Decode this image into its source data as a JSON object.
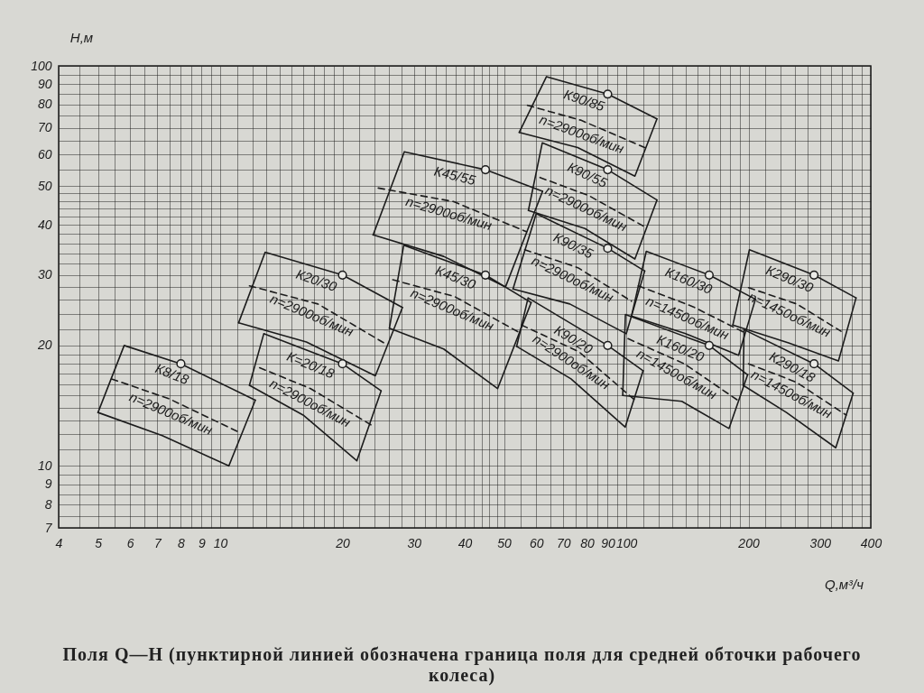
{
  "chart_data": {
    "type": "line",
    "xlabel": "Q,м³/ч",
    "ylabel": "H,м",
    "log": "xy",
    "grid": true,
    "xlim": [
      4,
      400
    ],
    "ylim": [
      7,
      100
    ],
    "xticks": [
      4,
      {
        "value": 4.5,
        "label": null
      },
      5,
      {
        "value": 5.5,
        "label": null
      },
      6,
      {
        "value": 6.5,
        "label": null
      },
      7,
      {
        "value": 7.5,
        "label": null
      },
      8,
      {
        "value": 8.5,
        "label": null
      },
      9,
      {
        "value": 9.5,
        "label": null
      },
      10,
      {
        "value": 11,
        "label": null
      },
      {
        "value": 12,
        "label": null
      },
      {
        "value": 13,
        "label": null
      },
      {
        "value": 14,
        "label": null
      },
      {
        "value": 15,
        "label": null
      },
      {
        "value": 16,
        "label": null
      },
      {
        "value": 17,
        "label": null
      },
      {
        "value": 18,
        "label": null
      },
      {
        "value": 19,
        "label": null
      },
      20,
      {
        "value": 22,
        "label": null
      },
      {
        "value": 24,
        "label": null
      },
      {
        "value": 26,
        "label": null
      },
      {
        "value": 28,
        "label": null
      },
      30,
      {
        "value": 32,
        "label": null
      },
      {
        "value": 34,
        "label": null
      },
      {
        "value": 36,
        "label": null
      },
      {
        "value": 38,
        "label": null
      },
      40,
      {
        "value": 42,
        "label": null
      },
      {
        "value": 44,
        "label": null
      },
      {
        "value": 46,
        "label": null
      },
      {
        "value": 48,
        "label": null
      },
      50,
      {
        "value": 55,
        "label": null
      },
      60,
      {
        "value": 65,
        "label": null
      },
      70,
      {
        "value": 75,
        "label": null
      },
      80,
      {
        "value": 85,
        "label": null
      },
      90,
      {
        "value": 95,
        "label": null
      },
      100,
      {
        "value": 110,
        "label": null
      },
      {
        "value": 120,
        "label": null
      },
      {
        "value": 130,
        "label": null
      },
      {
        "value": 140,
        "label": null
      },
      {
        "value": 150,
        "label": null
      },
      {
        "value": 160,
        "label": null
      },
      {
        "value": 170,
        "label": null
      },
      {
        "value": 180,
        "label": null
      },
      {
        "value": 190,
        "label": null
      },
      200,
      {
        "value": 220,
        "label": null
      },
      {
        "value": 240,
        "label": null
      },
      {
        "value": 260,
        "label": null
      },
      {
        "value": 280,
        "label": null
      },
      300,
      {
        "value": 320,
        "label": null
      },
      {
        "value": 340,
        "label": null
      },
      {
        "value": 360,
        "label": null
      },
      {
        "value": 380,
        "label": null
      },
      400
    ],
    "yticks": [
      7,
      {
        "value": 7.5,
        "label": null
      },
      8,
      {
        "value": 8.5,
        "label": null
      },
      9,
      {
        "value": 9.5,
        "label": null
      },
      10,
      {
        "value": 11,
        "label": null
      },
      {
        "value": 12,
        "label": null
      },
      {
        "value": 13,
        "label": null
      },
      {
        "value": 14,
        "label": null
      },
      {
        "value": 15,
        "label": null
      },
      {
        "value": 16,
        "label": null
      },
      {
        "value": 17,
        "label": null
      },
      {
        "value": 18,
        "label": null
      },
      {
        "value": 19,
        "label": null
      },
      20,
      {
        "value": 22,
        "label": null
      },
      {
        "value": 24,
        "label": null
      },
      {
        "value": 26,
        "label": null
      },
      {
        "value": 28,
        "label": null
      },
      30,
      {
        "value": 32,
        "label": null
      },
      {
        "value": 34,
        "label": null
      },
      {
        "value": 36,
        "label": null
      },
      {
        "value": 38,
        "label": null
      },
      40,
      {
        "value": 42,
        "label": null
      },
      {
        "value": 44,
        "label": null
      },
      {
        "value": 46,
        "label": null
      },
      {
        "value": 48,
        "label": null
      },
      50,
      {
        "value": 55,
        "label": null
      },
      60,
      {
        "value": 65,
        "label": null
      },
      70,
      {
        "value": 75,
        "label": null
      },
      80,
      {
        "value": 85,
        "label": null
      },
      90,
      {
        "value": 95,
        "label": null
      },
      100
    ],
    "series": [
      {
        "type": "line",
        "name": "К8/18",
        "color": "#1c1c1c",
        "line_style": "solid",
        "x": [
          5.0,
          5.8,
          8,
          12.2
        ],
        "values": [
          13.6,
          20.0,
          18,
          14.6
        ]
      },
      {
        "type": "line",
        "color": "#1c1c1c",
        "line_style": "solid",
        "x": [
          5.0,
          7.2,
          10.5,
          12.2
        ],
        "values": [
          13.6,
          11.9,
          10.0,
          14.6
        ]
      },
      {
        "type": "line",
        "name": "n=2900об/мин",
        "color": "#1c1c1c",
        "line_style": "dashed",
        "x": [
          5.4,
          7.5,
          11.2
        ],
        "values": [
          16.5,
          14.7,
          12.1
        ]
      },
      {
        "type": "line",
        "name": "К20/30",
        "color": "#1c1c1c",
        "line_style": "solid",
        "x": [
          11.1,
          12.9,
          20,
          28.1
        ],
        "values": [
          22.8,
          34.2,
          30,
          24.9
        ]
      },
      {
        "type": "line",
        "color": "#1c1c1c",
        "line_style": "solid",
        "x": [
          11.1,
          16.3,
          24.1,
          28.1
        ],
        "values": [
          22.8,
          20.4,
          16.8,
          24.9
        ]
      },
      {
        "type": "line",
        "name": "n=2900об/мин",
        "color": "#1c1c1c",
        "line_style": "dashed",
        "x": [
          11.8,
          17.4,
          25.3
        ],
        "values": [
          28.2,
          25.4,
          20.3
        ]
      },
      {
        "type": "line",
        "name": "К=20/18",
        "color": "#1c1c1c",
        "line_style": "solid",
        "x": [
          11.8,
          12.8,
          20,
          24.9
        ],
        "values": [
          15.9,
          21.4,
          18,
          15.4
        ]
      },
      {
        "type": "line",
        "color": "#1c1c1c",
        "line_style": "solid",
        "x": [
          11.8,
          16.0,
          21.7,
          24.9
        ],
        "values": [
          15.9,
          13.4,
          10.3,
          15.4
        ]
      },
      {
        "type": "line",
        "name": "n=2900об/мин",
        "color": "#1c1c1c",
        "line_style": "dashed",
        "x": [
          12.5,
          16.7,
          23.7
        ],
        "values": [
          17.6,
          15.6,
          12.6
        ]
      },
      {
        "type": "line",
        "name": "К45/55",
        "color": "#1c1c1c",
        "line_style": "solid",
        "x": [
          23.8,
          28.4,
          45,
          62.2
        ],
        "values": [
          37.8,
          61,
          55,
          48.6
        ]
      },
      {
        "type": "line",
        "color": "#1c1c1c",
        "line_style": "solid",
        "x": [
          23.8,
          35.5,
          50.4,
          62.2
        ],
        "values": [
          37.8,
          33.4,
          28.0,
          48.6
        ]
      },
      {
        "type": "line",
        "name": "n=2900об/мин",
        "color": "#1c1c1c",
        "line_style": "dashed",
        "x": [
          24.5,
          37.5,
          56.8
        ],
        "values": [
          49.5,
          45.8,
          38.5
        ]
      },
      {
        "type": "line",
        "name": "К45/30",
        "color": "#1c1c1c",
        "line_style": "solid",
        "x": [
          26.1,
          28.3,
          45,
          58.3
        ],
        "values": [
          22.1,
          35.6,
          30,
          25.6
        ]
      },
      {
        "type": "line",
        "color": "#1c1c1c",
        "line_style": "solid",
        "x": [
          26.1,
          35.5,
          48.2,
          58.3
        ],
        "values": [
          22.1,
          19.6,
          15.6,
          25.6
        ]
      },
      {
        "type": "line",
        "name": "n=2900об/мин",
        "color": "#1c1c1c",
        "line_style": "dashed",
        "x": [
          26.6,
          37.8,
          55.2
        ],
        "values": [
          29.2,
          26.5,
          21.4
        ]
      },
      {
        "type": "line",
        "name": "К90/85",
        "color": "#1c1c1c",
        "line_style": "solid",
        "x": [
          54.5,
          63.6,
          90,
          119
        ],
        "values": [
          68.2,
          94,
          85,
          73.7
        ]
      },
      {
        "type": "line",
        "color": "#1c1c1c",
        "line_style": "solid",
        "x": [
          54.5,
          75.9,
          105,
          119
        ],
        "values": [
          68.2,
          62.5,
          53,
          73.7
        ]
      },
      {
        "type": "line",
        "name": "n=2900об/мин",
        "color": "#1c1c1c",
        "line_style": "dashed",
        "x": [
          57.1,
          77.4,
          111
        ],
        "values": [
          79.7,
          73.1,
          62.5
        ]
      },
      {
        "type": "line",
        "name": "К90/55",
        "color": "#1c1c1c",
        "line_style": "solid",
        "x": [
          57.4,
          62.1,
          90,
          119
        ],
        "values": [
          43.5,
          64.2,
          55,
          46.2
        ]
      },
      {
        "type": "line",
        "color": "#1c1c1c",
        "line_style": "solid",
        "x": [
          57.4,
          79.1,
          105,
          119
        ],
        "values": [
          43.5,
          39.2,
          32.9,
          46.2
        ]
      },
      {
        "type": "line",
        "name": "n=2900об/мин",
        "color": "#1c1c1c",
        "line_style": "dashed",
        "x": [
          61.3,
          80.8,
          110
        ],
        "values": [
          52.6,
          47.4,
          39.8
        ]
      },
      {
        "type": "line",
        "name": "К90/35",
        "color": "#1c1c1c",
        "line_style": "solid",
        "x": [
          52.6,
          60.0,
          90,
          111
        ],
        "values": [
          27.7,
          42.7,
          35,
          30.7
        ]
      },
      {
        "type": "line",
        "color": "#1c1c1c",
        "line_style": "solid",
        "x": [
          52.6,
          72.6,
          100,
          111
        ],
        "values": [
          27.7,
          25.4,
          21.4,
          30.7
        ]
      },
      {
        "type": "line",
        "name": "n=2900об/мин",
        "color": "#1c1c1c",
        "line_style": "dashed",
        "x": [
          56.2,
          76.0,
          103
        ],
        "values": [
          34.7,
          31.3,
          25.8
        ]
      },
      {
        "type": "line",
        "name": "К90/20",
        "color": "#1c1c1c",
        "line_style": "solid",
        "x": [
          53.7,
          57.3,
          90,
          110
        ],
        "values": [
          19.9,
          26.3,
          20,
          17.3
        ]
      },
      {
        "type": "line",
        "color": "#1c1c1c",
        "line_style": "solid",
        "x": [
          53.7,
          73.1,
          99.4,
          110
        ],
        "values": [
          19.9,
          16.5,
          12.5,
          17.3
        ]
      },
      {
        "type": "line",
        "name": "n=2900об/мин",
        "color": "#1c1c1c",
        "line_style": "dashed",
        "x": [
          55.2,
          76.4,
          105
        ],
        "values": [
          22.5,
          19.3,
          14.6
        ]
      },
      {
        "type": "line",
        "name": "К160/30",
        "color": "#1c1c1c",
        "line_style": "solid",
        "x": [
          103,
          112,
          160,
          208
        ],
        "values": [
          23.7,
          34.4,
          30,
          26.1
        ]
      },
      {
        "type": "line",
        "color": "#1c1c1c",
        "line_style": "solid",
        "x": [
          103,
          140,
          189,
          208
        ],
        "values": [
          23.7,
          21.4,
          18.9,
          26.1
        ]
      },
      {
        "type": "line",
        "name": "n=1450об/мин",
        "color": "#1c1c1c",
        "line_style": "dashed",
        "x": [
          107,
          146,
          198
        ],
        "values": [
          28.2,
          25.0,
          21.4
        ]
      },
      {
        "type": "line",
        "name": "К160/20",
        "color": "#1c1c1c",
        "line_style": "solid",
        "x": [
          98,
          99.5,
          160,
          199
        ],
        "values": [
          15.0,
          23.9,
          20,
          16.9
        ]
      },
      {
        "type": "line",
        "color": "#1c1c1c",
        "line_style": "solid",
        "x": [
          98,
          137,
          179,
          199
        ],
        "values": [
          15.0,
          14.5,
          12.4,
          16.9
        ]
      },
      {
        "type": "line",
        "name": "n=1450об/мин",
        "color": "#1c1c1c",
        "line_style": "dashed",
        "x": [
          101,
          139,
          188
        ],
        "values": [
          20.8,
          18.0,
          14.6
        ]
      },
      {
        "type": "line",
        "name": "К290/30",
        "color": "#1c1c1c",
        "line_style": "solid",
        "x": [
          183,
          201,
          290,
          368
        ],
        "values": [
          22.5,
          34.7,
          30,
          26.3
        ]
      },
      {
        "type": "line",
        "color": "#1c1c1c",
        "line_style": "solid",
        "x": [
          183,
          251,
          333,
          368
        ],
        "values": [
          22.5,
          20.3,
          18.3,
          26.3
        ]
      },
      {
        "type": "line",
        "name": "n=1450об/мин",
        "color": "#1c1c1c",
        "line_style": "dashed",
        "x": [
          200,
          263,
          338
        ],
        "values": [
          27.9,
          25.4,
          21.7
        ]
      },
      {
        "type": "line",
        "name": "К290/18",
        "color": "#1c1c1c",
        "line_style": "solid",
        "x": [
          194,
          195,
          290,
          362
        ],
        "values": [
          15.9,
          21.9,
          18,
          15.2
        ]
      },
      {
        "type": "line",
        "color": "#1c1c1c",
        "line_style": "solid",
        "x": [
          194,
          248,
          328,
          362
        ],
        "values": [
          15.9,
          13.6,
          11.1,
          15.2
        ]
      },
      {
        "type": "line",
        "name": "n=1450об/мин",
        "color": "#1c1c1c",
        "line_style": "dashed",
        "x": [
          200,
          262,
          348
        ],
        "values": [
          18.0,
          16.2,
          13.4
        ]
      },
      {
        "type": "scatter",
        "marker": "circle",
        "color": "#1c1c1c",
        "x": [
          8,
          20,
          20,
          45,
          45,
          90,
          90,
          90,
          90,
          160,
          160,
          290,
          290
        ],
        "values": [
          18,
          30,
          18,
          55,
          30,
          85,
          55,
          35,
          20,
          30,
          20,
          30,
          18
        ]
      }
    ],
    "annotations": [
      "Поля Q—H (пунктирной линией обозначена граница поля для средней обточки рабочего колеса)"
    ]
  }
}
